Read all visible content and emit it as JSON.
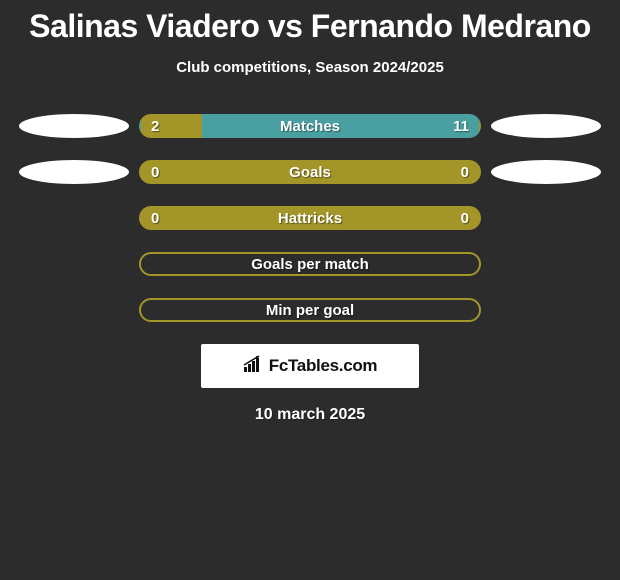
{
  "title": "Salinas Viadero vs Fernando Medrano",
  "subtitle": "Club competitions, Season 2024/2025",
  "date": "10 march 2025",
  "logo_text": "FcTables.com",
  "colors": {
    "background": "#2c2c2c",
    "olive": "#a39527",
    "teal": "#4aa0a0",
    "white": "#ffffff",
    "text": "#ffffff"
  },
  "stats": [
    {
      "label": "Matches",
      "left_value": "2",
      "right_value": "11",
      "type": "split",
      "left_color": "#a39527",
      "right_color": "#4aa0a0",
      "split_percent": 18,
      "show_ovals": true
    },
    {
      "label": "Goals",
      "left_value": "0",
      "right_value": "0",
      "type": "split",
      "left_color": "#a39527",
      "right_color": "#a39527",
      "split_percent": 50,
      "show_ovals": true
    },
    {
      "label": "Hattricks",
      "left_value": "0",
      "right_value": "0",
      "type": "split",
      "left_color": "#a39527",
      "right_color": "#a39527",
      "split_percent": 50,
      "show_ovals": false
    },
    {
      "label": "Goals per match",
      "left_value": "",
      "right_value": "",
      "type": "outline",
      "outline_color": "#a39527",
      "show_ovals": false
    },
    {
      "label": "Min per goal",
      "left_value": "",
      "right_value": "",
      "type": "outline",
      "outline_color": "#a39527",
      "show_ovals": false
    }
  ]
}
